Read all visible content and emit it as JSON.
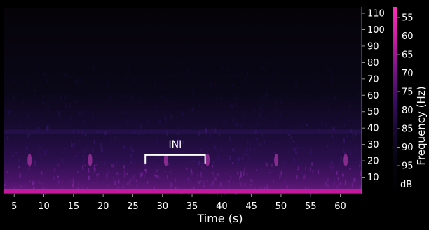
{
  "chart_data": {
    "type": "heatmap",
    "subtype": "spectrogram",
    "xlabel": "Time (s)",
    "x_ticks": [
      5,
      10,
      15,
      20,
      25,
      30,
      35,
      40,
      45,
      50,
      55,
      60
    ],
    "xlim": [
      3.2,
      63.6
    ],
    "ylabel": "Frequency (Hz)",
    "y_ticks": [
      10,
      20,
      30,
      40,
      50,
      60,
      70,
      80,
      90,
      100,
      110
    ],
    "ylim": [
      0,
      113
    ],
    "colorbar": {
      "ticks": [
        55,
        60,
        65,
        70,
        75,
        80,
        85,
        90,
        95
      ],
      "label": "dB",
      "colors": [
        "#ff2fb8",
        "#c81ea2",
        "#7a1287",
        "#3b0c62",
        "#170831",
        "#05040f",
        "#000000"
      ]
    },
    "annotation": {
      "label": "INI",
      "x_start": 27.1,
      "x_end": 37.2,
      "y": 23.5
    },
    "grid": false,
    "legend": "none"
  }
}
